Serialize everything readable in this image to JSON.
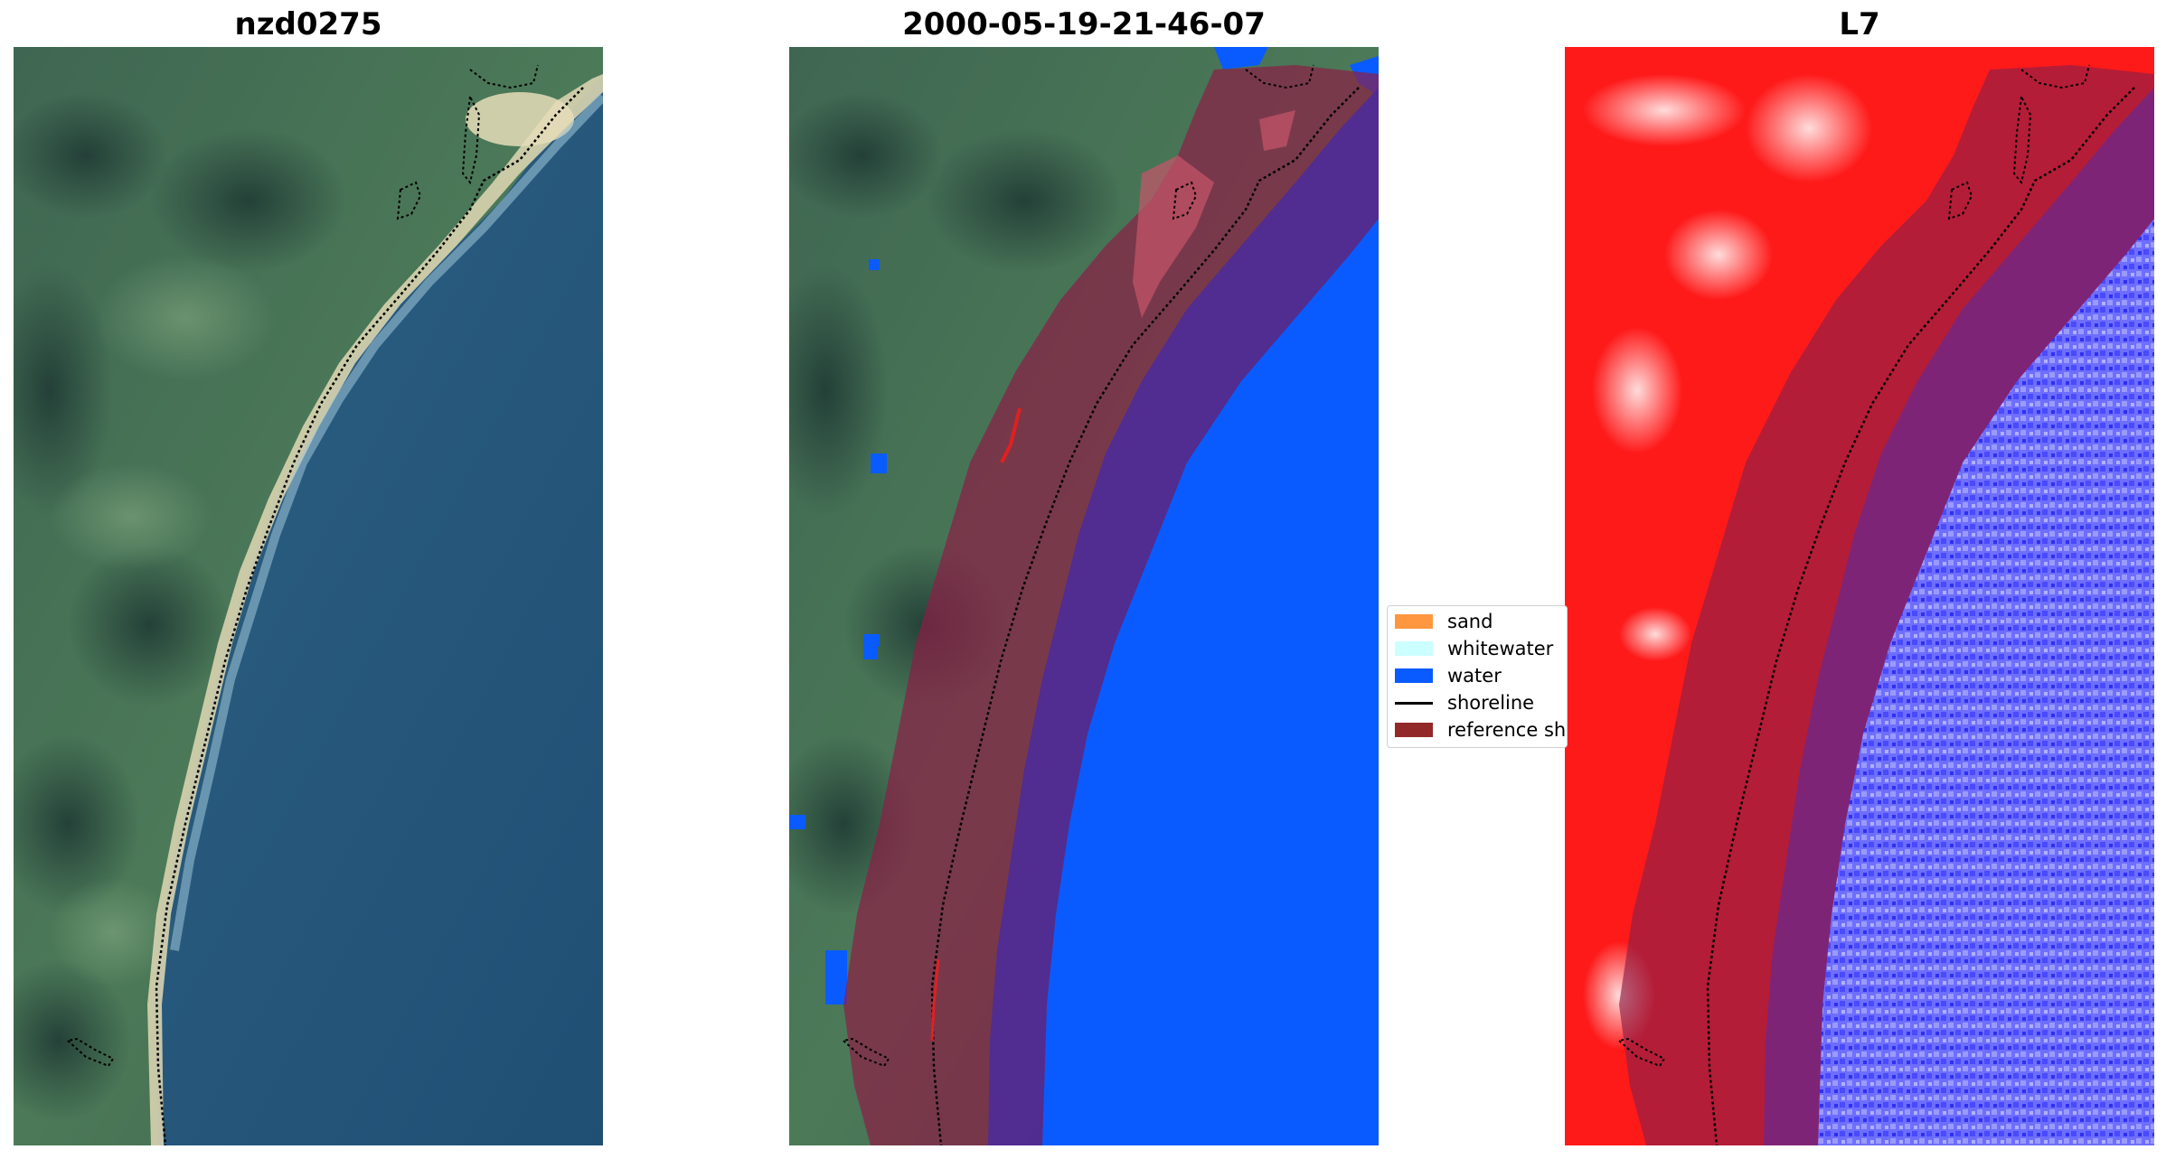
{
  "panels": [
    {
      "title": "nzd0275"
    },
    {
      "title": "2000-05-19-21-46-07"
    },
    {
      "title": "L7"
    }
  ],
  "legend": {
    "items": [
      {
        "label": "sand",
        "color": "#ff9640",
        "kind": "patch"
      },
      {
        "label": "whitewater",
        "color": "#ccffff",
        "kind": "patch"
      },
      {
        "label": "water",
        "color": "#0a5bff",
        "kind": "patch"
      },
      {
        "label": "shoreline",
        "color": "#000000",
        "kind": "line"
      },
      {
        "label": "reference sh",
        "color": "#932828",
        "kind": "patch"
      }
    ]
  },
  "colors": {
    "water_class": "#0a5bff",
    "reference_buffer": "#8c1e46",
    "land_index": "#ff1a1a",
    "water_index": "#6e6eff",
    "shoreline": "#000000"
  }
}
